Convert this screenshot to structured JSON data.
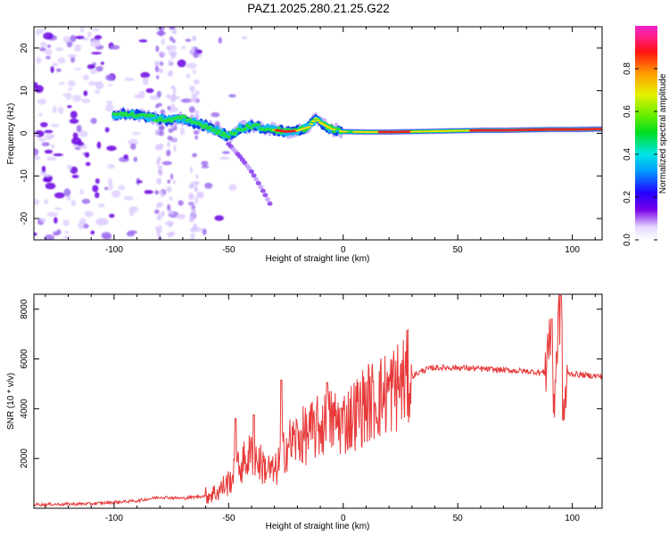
{
  "title": "PAZ1.2025.280.21.25.G22",
  "colors": {
    "snr_line": "#e83a3a",
    "track_core": "#ee2222",
    "track_mid": "#22dd44",
    "track_outer": "#1144ee",
    "track_edge": "#11bbee",
    "noise": "#6a00e0"
  },
  "chart_data": [
    {
      "type": "heatmap",
      "name": "spectrogram",
      "xlabel": "Height of straight line (km)",
      "ylabel": "Frequency (Hz)",
      "xlim": [
        -135,
        113
      ],
      "ylim": [
        -25,
        25
      ],
      "xticks": [
        -100,
        -50,
        0,
        50,
        100
      ],
      "yticks": [
        -20,
        -10,
        0,
        10,
        20
      ],
      "xtick_labels": [
        "-100",
        "-50",
        "0",
        "50",
        "100"
      ],
      "ytick_labels": [
        "-20",
        "-10",
        "0",
        "10",
        "20"
      ],
      "colorbar": {
        "label": "Normalized spectral amplitude",
        "range": [
          0,
          1
        ],
        "ticks": [
          0.0,
          0.2,
          0.4,
          0.6,
          0.8
        ],
        "tick_labels": [
          "0.0",
          "0.2",
          "0.4",
          "0.6",
          "0.8"
        ],
        "colormap": "gist_ncar-like: white-purple-blue-cyan-green-yellow-orange-red-magenta"
      },
      "track_freq_hz": {
        "height_km": [
          -100,
          -95,
          -90,
          -85,
          -80,
          -75,
          -70,
          -65,
          -60,
          -55,
          -50,
          -45,
          -40,
          -35,
          -30,
          -25,
          -20,
          -15,
          -12,
          -10,
          -5,
          0,
          10,
          20,
          30,
          40,
          50,
          60,
          70,
          80,
          90,
          100,
          113
        ],
        "freq": [
          4.2,
          4.6,
          4.4,
          3.8,
          3.4,
          3.0,
          3.5,
          2.5,
          1.8,
          0.6,
          -0.8,
          1.2,
          1.8,
          1.2,
          0.8,
          0.4,
          0.6,
          1.5,
          3.5,
          2.5,
          1.0,
          0.4,
          0.3,
          0.3,
          0.4,
          0.5,
          0.6,
          0.7,
          0.7,
          0.8,
          0.9,
          0.9,
          1.0
        ]
      },
      "secondary_branch_hz": {
        "height_km": [
          -50,
          -45,
          -40,
          -35,
          -32
        ],
        "freq": [
          -2.5,
          -5.5,
          -9.0,
          -13.5,
          -16.5
        ]
      }
    },
    {
      "type": "line",
      "name": "snr",
      "xlabel": "Height of straight line (km)",
      "ylabel": "SNR (10 * v/v)",
      "xlim": [
        -135,
        113
      ],
      "ylim": [
        0,
        8600
      ],
      "xticks": [
        -100,
        -50,
        0,
        50,
        100
      ],
      "yticks": [
        2000,
        4000,
        6000,
        8000
      ],
      "xtick_labels": [
        "-100",
        "-50",
        "0",
        "50",
        "100"
      ],
      "ytick_labels": [
        "2000",
        "4000",
        "6000",
        "8000"
      ],
      "series": [
        {
          "name": "SNR",
          "x": [
            -135,
            -110,
            -90,
            -80,
            -70,
            -60,
            -55,
            -50,
            -45,
            -40,
            -35,
            -30,
            -25,
            -20,
            -15,
            -10,
            -5,
            0,
            5,
            10,
            15,
            20,
            25,
            30,
            35,
            40,
            50,
            60,
            70,
            80,
            88,
            90,
            92,
            94,
            95,
            96,
            98,
            100,
            105,
            113
          ],
          "values": [
            150,
            180,
            300,
            450,
            400,
            500,
            650,
            1050,
            1700,
            2200,
            1700,
            1400,
            2500,
            2800,
            3000,
            3300,
            3500,
            3450,
            3800,
            4200,
            4400,
            4700,
            5000,
            5300,
            5550,
            5650,
            5650,
            5600,
            5550,
            5500,
            5450,
            7000,
            4400,
            7400,
            8500,
            3500,
            5400,
            5400,
            5350,
            5300
          ],
          "peaks": [
            {
              "x": -47,
              "y": 3600
            },
            {
              "x": -39,
              "y": 3750
            },
            {
              "x": -27,
              "y": 5150
            },
            {
              "x": -7,
              "y": 5050
            },
            {
              "x": 91,
              "y": 7600
            },
            {
              "x": 95,
              "y": 8550
            }
          ]
        }
      ]
    }
  ]
}
